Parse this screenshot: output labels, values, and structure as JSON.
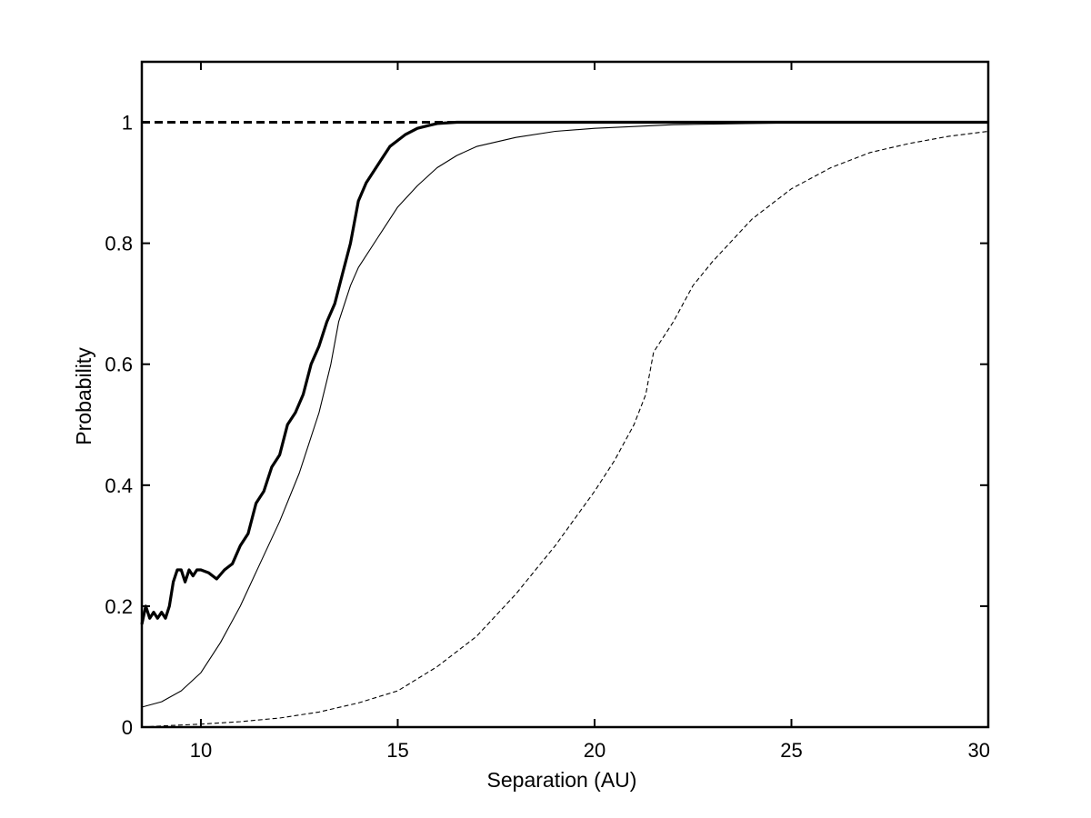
{
  "chart_data": {
    "type": "line",
    "title": "",
    "xlabel": "Separation (AU)",
    "ylabel": "Probability",
    "xlim": [
      8.5,
      30
    ],
    "ylim": [
      0,
      1.1
    ],
    "xticks": [
      10,
      15,
      20,
      25,
      30
    ],
    "yticks": [
      0,
      0.2,
      0.4,
      0.6,
      0.8,
      1
    ],
    "xtick_labels": [
      "10",
      "15",
      "20",
      "25",
      "30"
    ],
    "ytick_labels": [
      "0",
      "0.2",
      "0.4",
      "0.6",
      "0.8",
      "1"
    ],
    "grid": false,
    "legend": "none",
    "colors": {
      "line": "#000000",
      "background": "#ffffff"
    },
    "series": [
      {
        "style": "thick-solid",
        "x": [
          8.5,
          8.6,
          8.7,
          8.8,
          8.9,
          9.0,
          9.1,
          9.2,
          9.3,
          9.4,
          9.5,
          9.6,
          9.7,
          9.8,
          9.9,
          10.0,
          10.2,
          10.4,
          10.6,
          10.8,
          11.0,
          11.2,
          11.4,
          11.6,
          11.8,
          12.0,
          12.2,
          12.4,
          12.6,
          12.8,
          13.0,
          13.2,
          13.4,
          13.6,
          13.8,
          14.0,
          14.2,
          14.4,
          14.6,
          14.8,
          15.0,
          15.2,
          15.5,
          15.8,
          16.0,
          16.5,
          17.0,
          18.0,
          20.0,
          22.0,
          25.0,
          30.0
        ],
        "y": [
          0.17,
          0.2,
          0.18,
          0.19,
          0.18,
          0.19,
          0.18,
          0.2,
          0.24,
          0.26,
          0.26,
          0.24,
          0.26,
          0.25,
          0.26,
          0.26,
          0.255,
          0.245,
          0.26,
          0.27,
          0.3,
          0.32,
          0.37,
          0.39,
          0.43,
          0.45,
          0.5,
          0.52,
          0.55,
          0.6,
          0.63,
          0.67,
          0.7,
          0.75,
          0.8,
          0.87,
          0.9,
          0.92,
          0.94,
          0.96,
          0.97,
          0.98,
          0.99,
          0.995,
          0.998,
          1.0,
          1.0,
          1.0,
          1.0,
          1.0,
          1.0,
          1.0
        ]
      },
      {
        "style": "thin-solid",
        "x": [
          8.5,
          9.0,
          9.5,
          10.0,
          10.5,
          11.0,
          11.5,
          12.0,
          12.5,
          13.0,
          13.3,
          13.5,
          13.8,
          14.0,
          14.5,
          15.0,
          15.5,
          16.0,
          16.5,
          17.0,
          18.0,
          19.0,
          20.0,
          21.0,
          22.0,
          25.0,
          30.0
        ],
        "y": [
          0.033,
          0.042,
          0.06,
          0.09,
          0.14,
          0.2,
          0.27,
          0.34,
          0.42,
          0.52,
          0.6,
          0.67,
          0.73,
          0.76,
          0.81,
          0.86,
          0.895,
          0.925,
          0.945,
          0.96,
          0.975,
          0.985,
          0.99,
          0.993,
          0.996,
          0.999,
          1.0
        ]
      },
      {
        "style": "thin-dashed",
        "x": [
          8.5,
          9.0,
          10.0,
          11.0,
          12.0,
          13.0,
          14.0,
          15.0,
          16.0,
          17.0,
          18.0,
          19.0,
          20.0,
          20.5,
          21.0,
          21.3,
          21.5,
          22.0,
          22.5,
          23.0,
          24.0,
          25.0,
          26.0,
          27.0,
          28.0,
          29.0,
          30.0
        ],
        "y": [
          0.0,
          0.002,
          0.005,
          0.009,
          0.015,
          0.025,
          0.04,
          0.06,
          0.1,
          0.15,
          0.22,
          0.3,
          0.39,
          0.44,
          0.5,
          0.55,
          0.62,
          0.67,
          0.73,
          0.77,
          0.84,
          0.89,
          0.925,
          0.95,
          0.965,
          0.977,
          0.985
        ]
      },
      {
        "style": "thick-dashed",
        "x": [
          8.5,
          30.0
        ],
        "y": [
          1.0,
          1.0
        ]
      }
    ]
  }
}
